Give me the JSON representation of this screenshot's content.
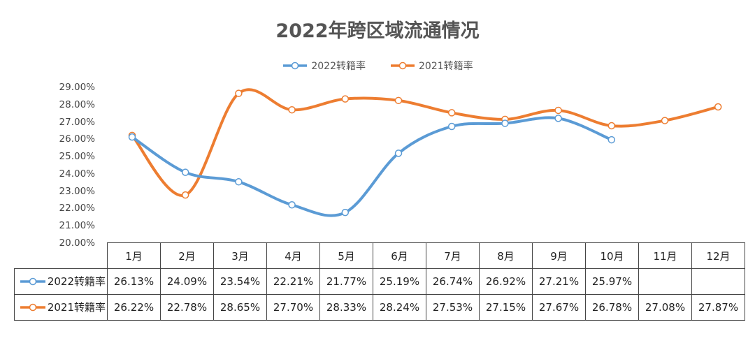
{
  "chart_data": {
    "type": "line",
    "title": "2022年跨区域流通情况",
    "categories": [
      "1月",
      "2月",
      "3月",
      "4月",
      "5月",
      "6月",
      "7月",
      "8月",
      "9月",
      "10月",
      "11月",
      "12月"
    ],
    "series": [
      {
        "name": "2022转籍率",
        "color": "#5b9bd5",
        "values": [
          26.13,
          24.09,
          23.54,
          22.21,
          21.77,
          25.19,
          26.74,
          26.92,
          27.21,
          25.97,
          null,
          null
        ],
        "labels": [
          "26.13%",
          "24.09%",
          "23.54%",
          "22.21%",
          "21.77%",
          "25.19%",
          "26.74%",
          "26.92%",
          "27.21%",
          "25.97%",
          "",
          ""
        ]
      },
      {
        "name": "2021转籍率",
        "color": "#ed7d31",
        "values": [
          26.22,
          22.78,
          28.65,
          27.7,
          28.33,
          28.24,
          27.53,
          27.15,
          27.67,
          26.78,
          27.08,
          27.87
        ],
        "labels": [
          "26.22%",
          "22.78%",
          "28.65%",
          "27.70%",
          "28.33%",
          "28.24%",
          "27.53%",
          "27.15%",
          "27.67%",
          "26.78%",
          "27.08%",
          "27.87%"
        ]
      }
    ],
    "ylim": [
      20,
      29
    ],
    "yticks": [
      "20.00%",
      "21.00%",
      "22.00%",
      "23.00%",
      "24.00%",
      "25.00%",
      "26.00%",
      "27.00%",
      "28.00%",
      "29.00%"
    ],
    "legend": "top-center",
    "grid": false
  }
}
